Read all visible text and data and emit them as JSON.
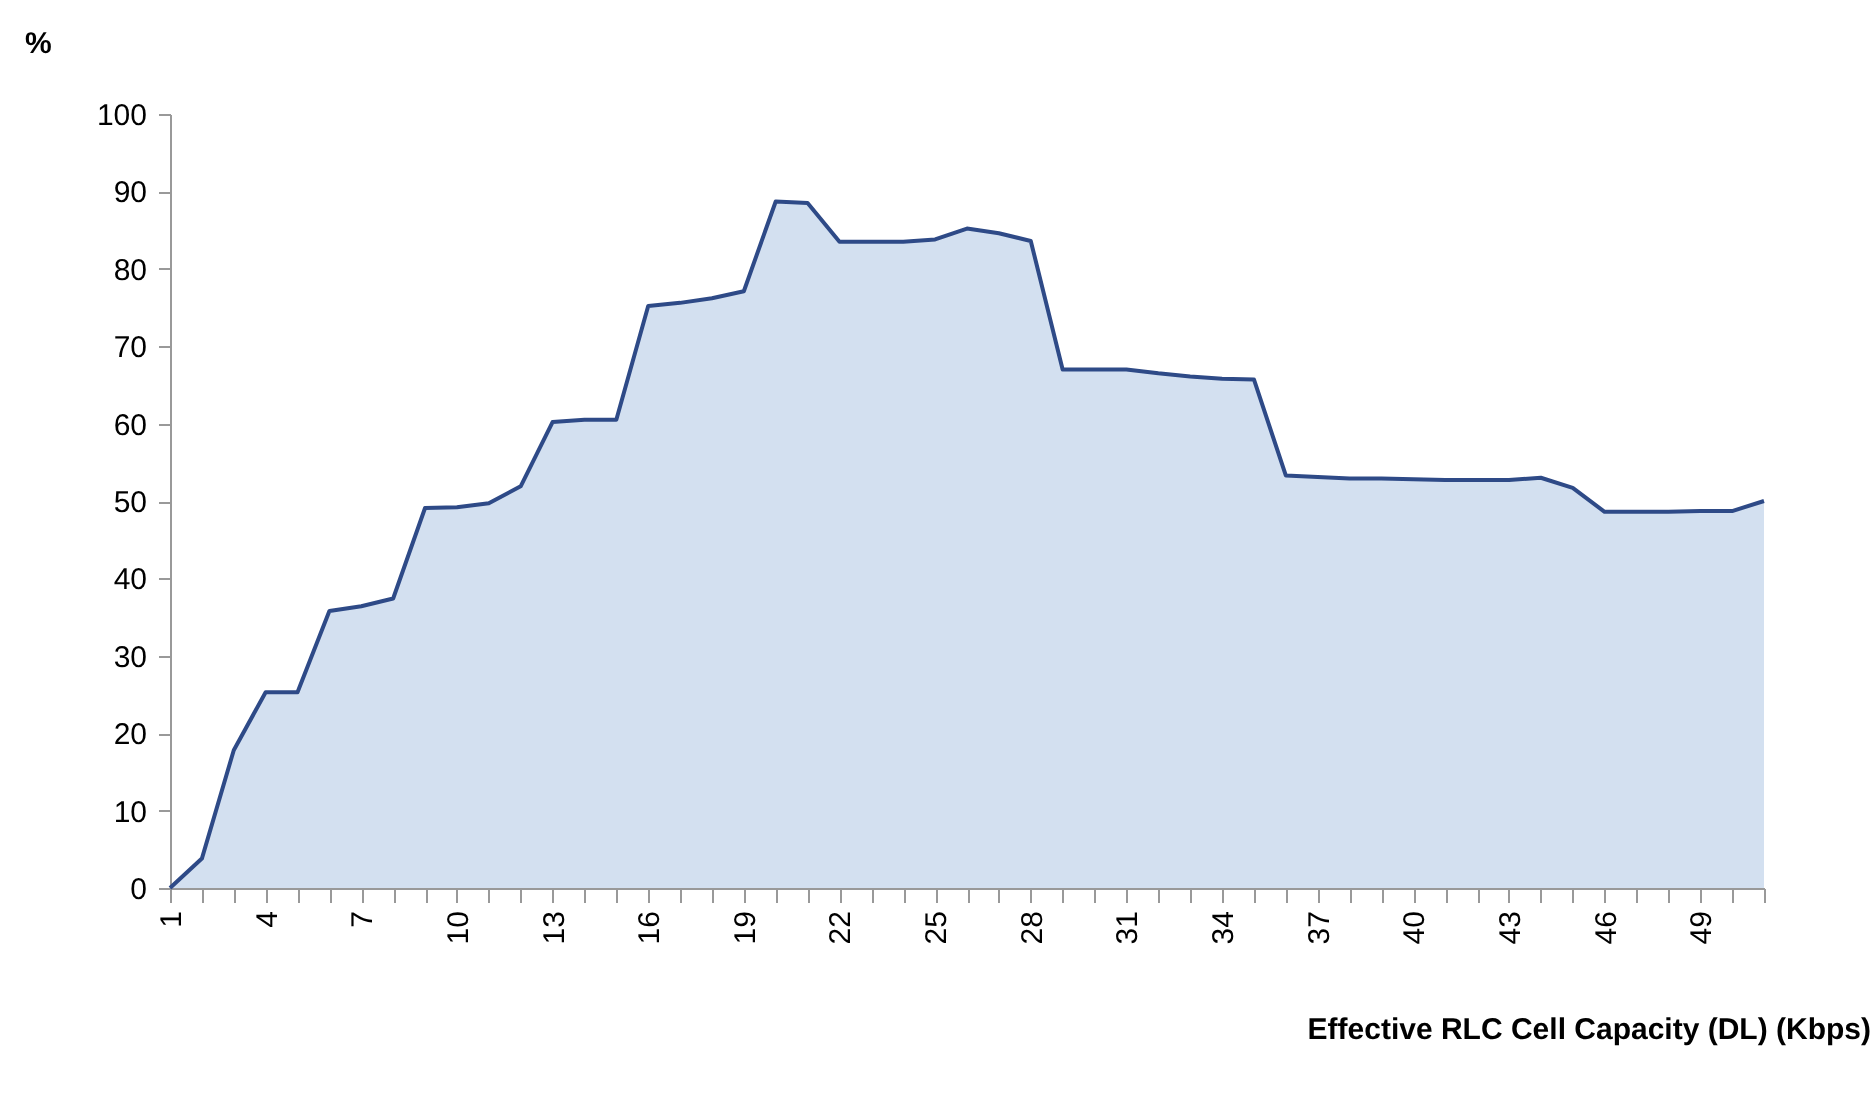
{
  "chart_data": {
    "type": "area",
    "ylabel": "%",
    "xlabel": "Effective RLC Cell Capacity (DL) (Kbps)",
    "categories": [
      "1",
      null,
      null,
      "4",
      null,
      null,
      "7",
      null,
      null,
      "10",
      null,
      null,
      "13",
      null,
      null,
      "16",
      null,
      null,
      "19",
      null,
      null,
      "22",
      null,
      null,
      "25",
      null,
      null,
      "28",
      null,
      null,
      "31",
      null,
      null,
      "34",
      null,
      null,
      "37",
      null,
      null,
      "40",
      null,
      null,
      "43",
      null,
      null,
      "46",
      null,
      null,
      "49",
      null,
      null
    ],
    "values": [
      0,
      3.8,
      17.8,
      25.3,
      25.3,
      35.8,
      36.4,
      37.4,
      49.1,
      49.2,
      49.7,
      51.9,
      60.2,
      60.5,
      60.5,
      75.2,
      75.6,
      76.2,
      77.1,
      88.7,
      88.5,
      83.5,
      83.5,
      83.5,
      83.8,
      85.2,
      84.6,
      83.6,
      67,
      67,
      67,
      66.5,
      66.1,
      65.8,
      65.7,
      53.3,
      53.1,
      52.9,
      52.9,
      52.8,
      52.7,
      52.7,
      52.7,
      53,
      51.7,
      48.6,
      48.6,
      48.6,
      48.7,
      48.7,
      50
    ],
    "color": "#c0d3ea",
    "ylim": [
      0,
      100
    ],
    "yticks": [
      0,
      10,
      20,
      30,
      40,
      50,
      60,
      70,
      80,
      90,
      100
    ],
    "grid": false,
    "legend": false
  }
}
